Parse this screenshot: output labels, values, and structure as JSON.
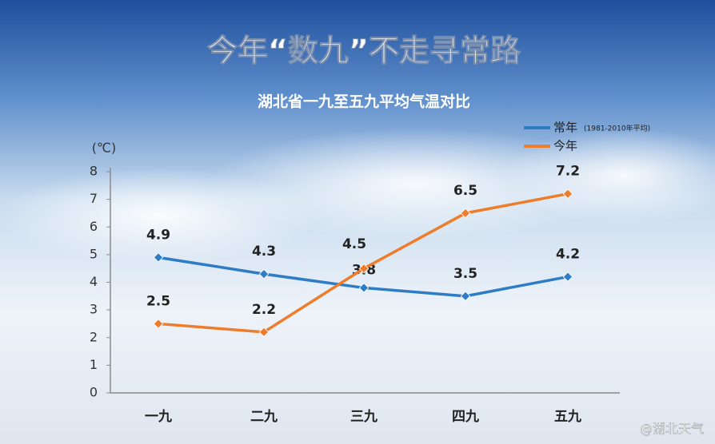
{
  "chart_data": {
    "type": "line",
    "title": "今年“数九”不走寻常路",
    "subtitle": "湖北省一九至五九平均气温对比",
    "y_unit": "(℃)",
    "categories": [
      "一九",
      "二九",
      "三九",
      "四九",
      "五九"
    ],
    "series": [
      {
        "name": "常年",
        "note": "(1981-2010年平均)",
        "color": "#2e7cc4",
        "values": [
          4.9,
          4.3,
          3.8,
          3.5,
          4.2
        ]
      },
      {
        "name": "今年",
        "color": "#ee7d2b",
        "values": [
          2.5,
          2.2,
          4.5,
          6.5,
          7.2
        ]
      }
    ],
    "ylim": [
      0,
      8
    ],
    "yticks": [
      0,
      1,
      2,
      3,
      4,
      5,
      6,
      7,
      8
    ],
    "watermark": "@湖北天气"
  }
}
